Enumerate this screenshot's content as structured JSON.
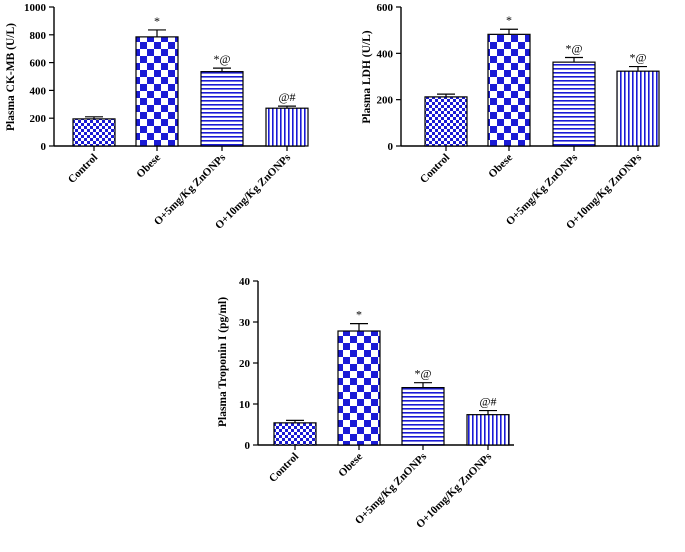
{
  "colors": {
    "bar_fill": "#1a1ad6",
    "stroke": "#000000",
    "background": "#ffffff"
  },
  "chart_data": [
    {
      "type": "bar",
      "ylabel": "Plasma CK-MB (U/L)",
      "categories": [
        "Control",
        "Obese",
        "O+5mg/Kg ZnONPs",
        "O+10mg/Kg ZnONPs"
      ],
      "values": [
        195,
        785,
        535,
        272
      ],
      "errors": [
        15,
        50,
        25,
        15
      ],
      "annotations": [
        "",
        "*",
        "*@",
        "@#"
      ],
      "patterns": [
        "small-checker",
        "large-checker",
        "horizontal-lines",
        "vertical-lines"
      ],
      "ylim": [
        0,
        1000
      ],
      "yticks": [
        0,
        200,
        400,
        600,
        800,
        1000
      ]
    },
    {
      "type": "bar",
      "ylabel": "Plasma LDH (U/L)",
      "categories": [
        "Control",
        "Obese",
        "O+5mg/Kg ZnONPs",
        "O+10mg/Kg ZnONPs"
      ],
      "values": [
        212,
        482,
        362,
        323
      ],
      "errors": [
        12,
        22,
        20,
        20
      ],
      "annotations": [
        "",
        "*",
        "*@",
        "*@"
      ],
      "patterns": [
        "small-checker",
        "large-checker",
        "horizontal-lines",
        "vertical-lines"
      ],
      "ylim": [
        0,
        600
      ],
      "yticks": [
        0,
        200,
        400,
        600
      ]
    },
    {
      "type": "bar",
      "ylabel": "Plasma Troponin I (pg/ml)",
      "categories": [
        "Control",
        "Obese",
        "O+5mg/Kg ZnONPs",
        "O+10mg/Kg ZnONPs"
      ],
      "values": [
        5.4,
        27.8,
        14.0,
        7.4
      ],
      "errors": [
        0.6,
        1.8,
        1.2,
        1.0
      ],
      "annotations": [
        "",
        "*",
        "*@",
        "@#"
      ],
      "patterns": [
        "small-checker",
        "large-checker",
        "horizontal-lines",
        "vertical-lines"
      ],
      "ylim": [
        0,
        40
      ],
      "yticks": [
        0,
        10,
        20,
        30,
        40
      ]
    }
  ]
}
